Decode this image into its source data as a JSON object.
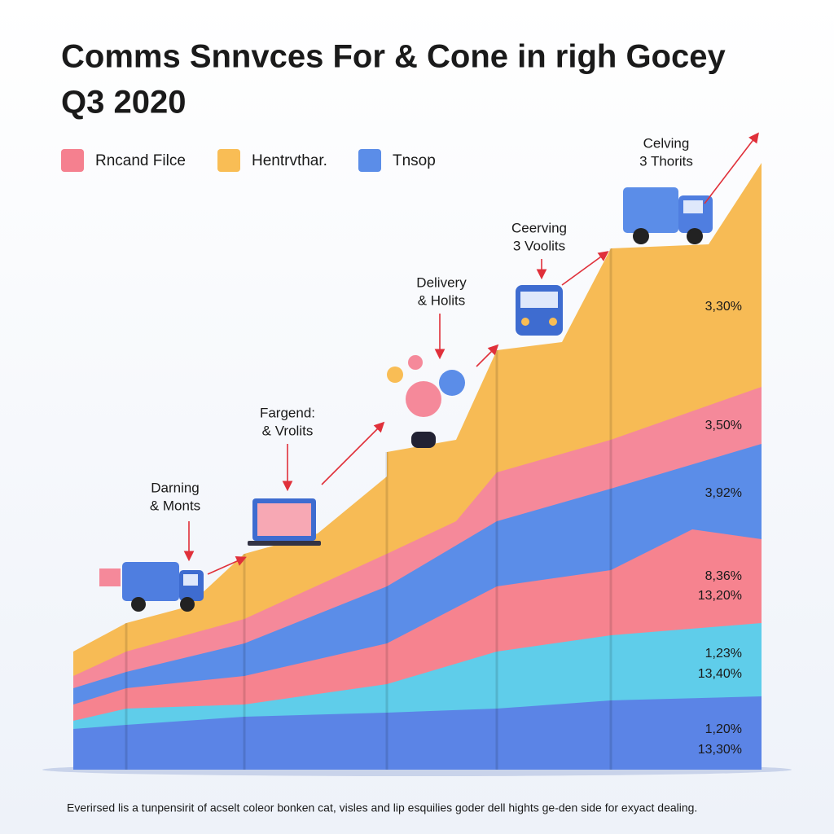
{
  "title": {
    "line1": "Comms Snnvces For & Cone in righ Gocey",
    "line2": "Q3 2020"
  },
  "legend": [
    {
      "label": "Rncand Filce",
      "color": "#f5808f"
    },
    {
      "label": "Hentrvthar.",
      "color": "#f9bd55"
    },
    {
      "label": "Tnsop",
      "color": "#5b8de8"
    }
  ],
  "annotations": [
    {
      "lines": [
        "Darning",
        "& Monts"
      ]
    },
    {
      "lines": [
        "Fargend:",
        "& Vrolits"
      ]
    },
    {
      "lines": [
        "Delivery",
        "& Holits"
      ]
    },
    {
      "lines": [
        "Ceerving",
        "3 Voolits"
      ]
    },
    {
      "lines": [
        "Celving",
        "3 Thorits"
      ]
    }
  ],
  "side_labels": [
    "3,30%",
    "3,50%",
    "3,92%",
    "8,36%",
    "13,20%",
    "1,23%",
    "13,40%",
    "1,20%",
    "13,30%"
  ],
  "footnote": "Everirsed lis a tunpensirit of acselt coleor bonken cat, visles and lip esquilies goder dell hights ge-den side for exyact dealing."
}
